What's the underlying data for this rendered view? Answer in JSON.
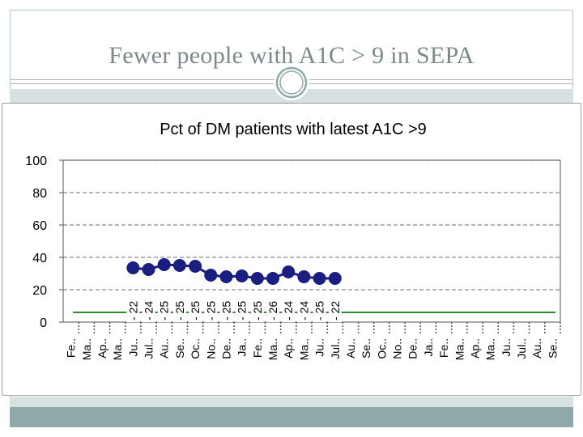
{
  "slide": {
    "title": "Fewer people with A1C > 9 in SEPA"
  },
  "colors": {
    "series": "#1a1e80",
    "target": "#2e8b2e",
    "grid": "#8a8a8a",
    "axis": "#555555",
    "text": "#000000"
  },
  "chart_data": {
    "type": "line",
    "title": "Pct of DM patients with latest A1C >9",
    "xlabel": "",
    "ylabel": "",
    "ylim": [
      0,
      100
    ],
    "yticks": [
      0,
      20,
      40,
      60,
      80,
      100
    ],
    "grid": "dashed horizontal",
    "categories": [
      "Fe..",
      "Ma..",
      "Ap..",
      "Ma..",
      "Ju..",
      "Jul..",
      "Au..",
      "Se..",
      "Oc..",
      "No..",
      "De..",
      "Ja..",
      "Fe..",
      "Ma..",
      "Ap..",
      "Ma..",
      "Ju..",
      "Jul..",
      "Au..",
      "Se..",
      "Oc..",
      "No..",
      "De..",
      "Ja..",
      "Fe..",
      "Ma..",
      "Ap..",
      "Ma..",
      "Ju..",
      "Jul..",
      "Au..",
      "Se.."
    ],
    "series": [
      {
        "values": [
          null,
          null,
          null,
          null,
          33.5,
          32.5,
          35.5,
          35,
          34.5,
          29,
          28,
          28.5,
          27,
          27,
          31,
          28,
          27,
          27,
          null,
          null,
          null,
          null,
          null,
          null,
          null,
          null,
          null,
          null,
          null,
          null,
          null,
          null
        ]
      }
    ],
    "target_line": {
      "value": 6
    },
    "overlay_labels": [
      {
        "category_index": 4,
        "text": "- 22"
      },
      {
        "category_index": 5,
        "text": "- 24"
      },
      {
        "category_index": 6,
        "text": "- 25"
      },
      {
        "category_index": 7,
        "text": "- 25"
      },
      {
        "category_index": 8,
        "text": "- 25"
      },
      {
        "category_index": 9,
        "text": "- 25"
      },
      {
        "category_index": 10,
        "text": "- 25"
      },
      {
        "category_index": 11,
        "text": "- 25"
      },
      {
        "category_index": 12,
        "text": "- 25"
      },
      {
        "category_index": 13,
        "text": "- 26"
      },
      {
        "category_index": 14,
        "text": "- 24"
      },
      {
        "category_index": 15,
        "text": "- 24"
      },
      {
        "category_index": 16,
        "text": "- 25"
      },
      {
        "category_index": 17,
        "text": "- 22"
      }
    ]
  }
}
